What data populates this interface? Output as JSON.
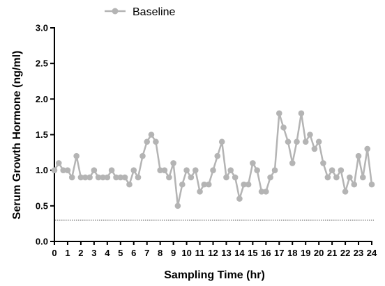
{
  "chart_data": {
    "type": "line",
    "xlabel": "Sampling Time (hr)",
    "ylabel": "Serum Growth Hormone (ng/ml)",
    "xlim": [
      0,
      24
    ],
    "ylim": [
      0,
      3.0
    ],
    "x_ticks": [
      "0",
      "1",
      "2",
      "3",
      "4",
      "5",
      "6",
      "7",
      "8",
      "9",
      "10",
      "11",
      "12",
      "13",
      "14",
      "15",
      "16",
      "17",
      "18",
      "19",
      "20",
      "21",
      "22",
      "23",
      "24"
    ],
    "y_ticks": [
      "0.0",
      "0.5",
      "1.0",
      "1.5",
      "2.0",
      "2.5",
      "3.0"
    ],
    "legend_position": "top-left",
    "grid": false,
    "reference_line": {
      "y": 0.3,
      "style": "dotted"
    },
    "colors": {
      "series": "#b4b4b4",
      "axis": "#000000",
      "reference": "#555555"
    },
    "series": [
      {
        "name": "Baseline",
        "x": [
          0,
          0.33,
          0.67,
          1,
          1.33,
          1.67,
          2,
          2.33,
          2.67,
          3,
          3.33,
          3.67,
          4,
          4.33,
          4.67,
          5,
          5.33,
          5.67,
          6,
          6.33,
          6.67,
          7,
          7.33,
          7.67,
          8,
          8.33,
          8.67,
          9,
          9.33,
          9.67,
          10,
          10.33,
          10.67,
          11,
          11.33,
          11.67,
          12,
          12.33,
          12.67,
          13,
          13.33,
          13.67,
          14,
          14.33,
          14.67,
          15,
          15.33,
          15.67,
          16,
          16.33,
          16.67,
          17,
          17.33,
          17.67,
          18,
          18.33,
          18.67,
          19,
          19.33,
          19.67,
          20,
          20.33,
          20.67,
          21,
          21.33,
          21.67,
          22,
          22.33,
          22.67,
          23,
          23.33,
          23.67,
          24
        ],
        "y": [
          1.0,
          1.1,
          1.0,
          1.0,
          0.9,
          1.2,
          0.9,
          0.9,
          0.9,
          1.0,
          0.9,
          0.9,
          0.9,
          1.0,
          0.9,
          0.9,
          0.9,
          0.8,
          1.0,
          0.9,
          1.2,
          1.4,
          1.5,
          1.4,
          1.0,
          1.0,
          0.9,
          1.1,
          0.5,
          0.8,
          1.0,
          0.9,
          1.0,
          0.7,
          0.8,
          0.8,
          1.0,
          1.2,
          1.4,
          0.9,
          1.0,
          0.9,
          0.6,
          0.8,
          0.8,
          1.1,
          1.0,
          0.7,
          0.7,
          0.9,
          1.0,
          1.8,
          1.6,
          1.4,
          1.1,
          1.4,
          1.8,
          1.4,
          1.5,
          1.3,
          1.4,
          1.1,
          0.9,
          1.0,
          0.9,
          1.0,
          0.7,
          0.9,
          0.8,
          1.2,
          0.9,
          1.3,
          0.8
        ]
      }
    ]
  }
}
